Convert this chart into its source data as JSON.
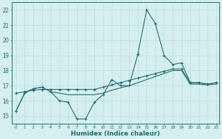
{
  "xlabel": "Humidex (Indice chaleur)",
  "xlim_min": -0.5,
  "xlim_max": 23.3,
  "ylim_min": 14.5,
  "ylim_max": 22.5,
  "yticks": [
    15,
    16,
    17,
    18,
    19,
    20,
    21,
    22
  ],
  "xticks": [
    0,
    1,
    2,
    3,
    4,
    5,
    6,
    7,
    8,
    9,
    10,
    11,
    12,
    13,
    14,
    15,
    16,
    17,
    18,
    19,
    20,
    21,
    22,
    23
  ],
  "background_color": "#d5efee",
  "grid_color": "#b8dada",
  "line_color": "#1a6b6b",
  "line1_x": [
    0,
    1,
    2,
    3,
    4,
    5,
    6,
    7,
    8,
    9,
    10,
    11,
    12,
    13,
    14,
    15,
    16,
    17,
    18,
    19,
    20,
    21,
    22,
    23
  ],
  "line1_y": [
    15.3,
    16.5,
    16.8,
    16.9,
    16.6,
    16.0,
    15.9,
    14.8,
    14.8,
    15.9,
    16.4,
    17.4,
    17.0,
    17.0,
    19.1,
    22.0,
    21.1,
    19.0,
    18.4,
    18.5,
    17.2,
    17.2,
    17.1,
    17.2
  ],
  "line2_x": [
    0,
    1,
    2,
    3,
    4,
    5,
    6,
    7,
    8,
    9,
    10,
    11,
    12,
    13,
    14,
    15,
    16,
    17,
    18,
    19,
    20,
    21,
    22,
    23
  ],
  "line2_y": [
    16.5,
    16.6,
    16.7,
    16.75,
    16.75,
    16.75,
    16.75,
    16.75,
    16.75,
    16.75,
    16.9,
    17.05,
    17.2,
    17.35,
    17.5,
    17.65,
    17.8,
    17.95,
    18.1,
    18.1,
    17.2,
    17.2,
    17.1,
    17.2
  ],
  "line3_x": [
    0,
    1,
    2,
    3,
    4,
    5,
    6,
    7,
    8,
    9,
    10,
    11,
    12,
    13,
    14,
    15,
    16,
    17,
    18,
    19,
    20,
    21,
    22,
    23
  ],
  "line3_y": [
    15.3,
    16.5,
    16.8,
    16.9,
    16.6,
    16.5,
    16.4,
    16.4,
    16.4,
    16.4,
    16.5,
    16.7,
    16.85,
    17.0,
    17.2,
    17.4,
    17.6,
    17.8,
    18.0,
    18.0,
    17.1,
    17.1,
    17.05,
    17.1
  ]
}
